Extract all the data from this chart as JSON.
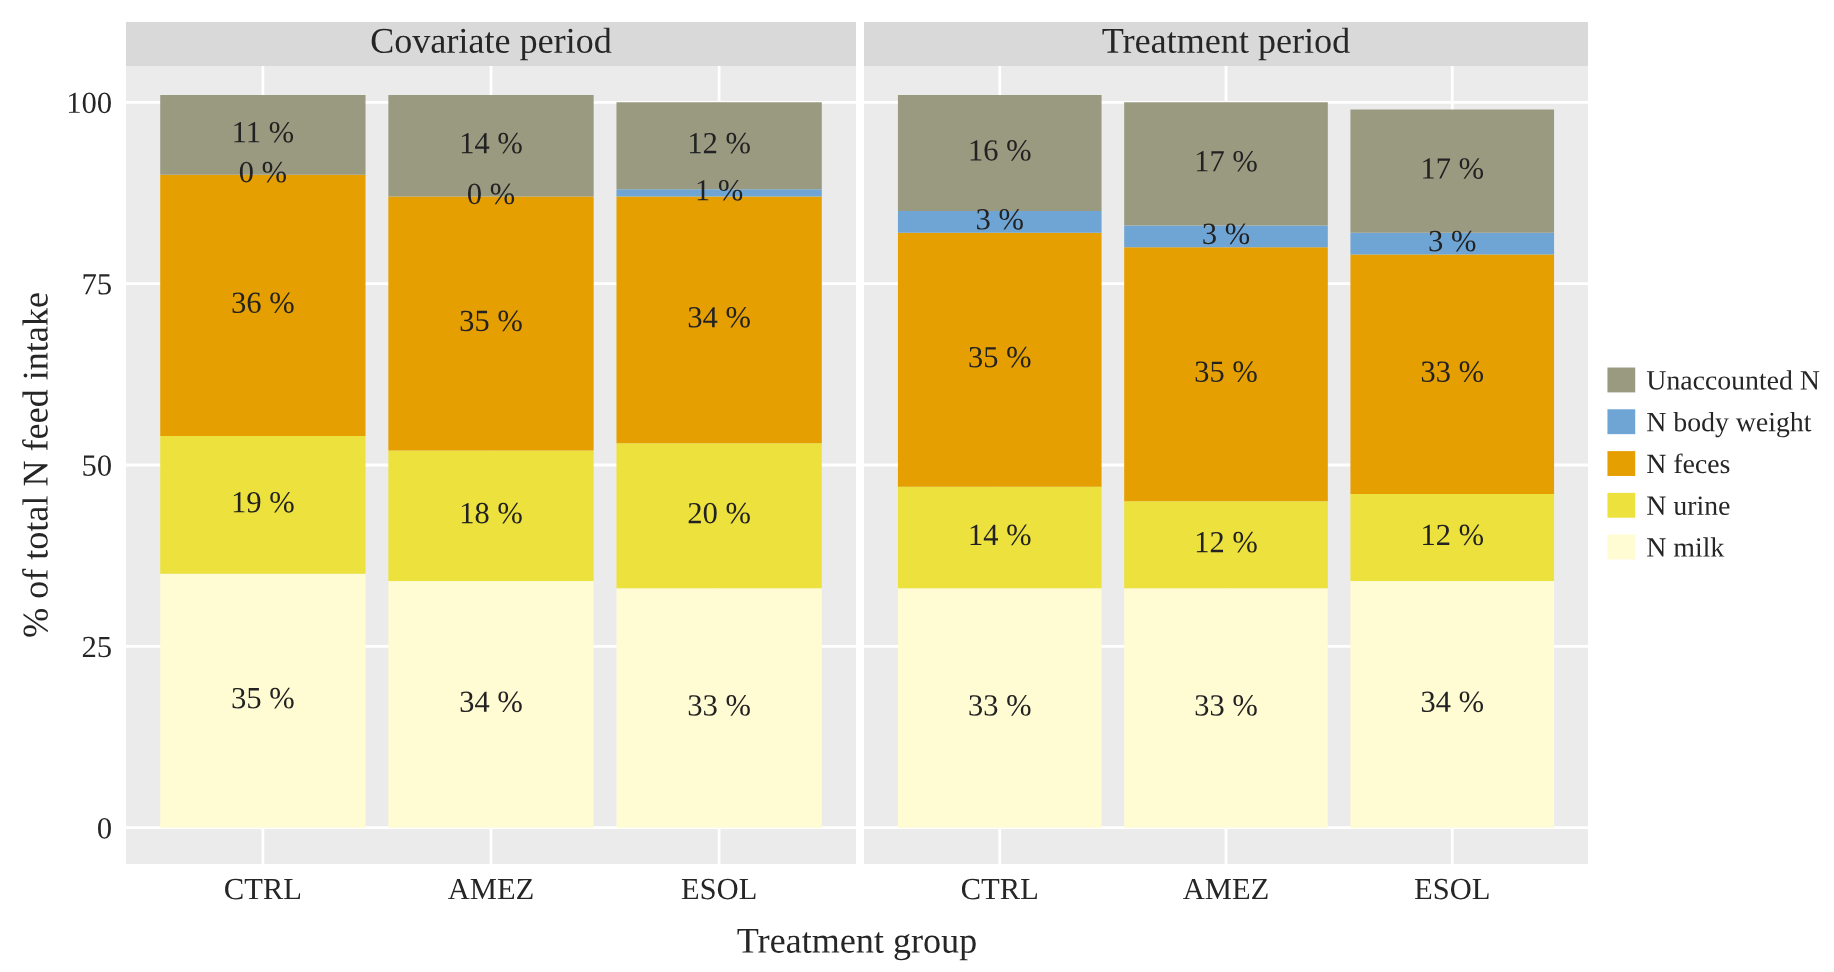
{
  "chart_data": [
    {
      "type": "bar",
      "title": "Covariate period",
      "xlabel": "Treatment group",
      "ylabel": "% of total N feed intake",
      "stacked": true,
      "grid": true,
      "categories": [
        "CTRL",
        "AMEZ",
        "ESOL"
      ],
      "ylim": [
        -5,
        105
      ],
      "yticks": [
        0,
        25,
        50,
        75,
        100
      ],
      "series": [
        {
          "color": "#fffbd2",
          "values": [
            35,
            34,
            33
          ],
          "value_labels": [
            "35 %",
            "34 %",
            "33 %"
          ]
        },
        {
          "color": "#ede23d",
          "values": [
            19,
            18,
            20
          ],
          "value_labels": [
            "19 %",
            "18 %",
            "20 %"
          ]
        },
        {
          "color": "#e69f00",
          "values": [
            36,
            35,
            34
          ],
          "value_labels": [
            "36 %",
            "35 %",
            "34 %"
          ]
        },
        {
          "color": "#6fa5d4",
          "values": [
            0,
            0,
            1
          ],
          "value_labels": [
            "0 %",
            "0 %",
            "1 %"
          ]
        },
        {
          "color": "#999a80",
          "values": [
            11,
            14,
            12
          ],
          "value_labels": [
            "11 %",
            "14 %",
            "12 %"
          ]
        }
      ]
    },
    {
      "type": "bar",
      "title": "Treatment period",
      "stacked": true,
      "grid": true,
      "legend": "right",
      "tick_labels": "x",
      "categories": [
        "CTRL",
        "AMEZ",
        "ESOL"
      ],
      "ylim": [
        -5,
        105
      ],
      "yticks": [
        0,
        25,
        50,
        75,
        100
      ],
      "series": [
        {
          "name": "N milk",
          "color": "#fffbd2",
          "values": [
            33,
            33,
            34
          ],
          "value_labels": [
            "33 %",
            "33 %",
            "34 %"
          ]
        },
        {
          "name": "N urine",
          "color": "#ede23d",
          "values": [
            14,
            12,
            12
          ],
          "value_labels": [
            "14 %",
            "12 %",
            "12 %"
          ]
        },
        {
          "name": "N feces",
          "color": "#e69f00",
          "values": [
            35,
            35,
            33
          ],
          "value_labels": [
            "35 %",
            "35 %",
            "33 %"
          ]
        },
        {
          "name": "N body weight",
          "color": "#6fa5d4",
          "values": [
            3,
            3,
            3
          ],
          "value_labels": [
            "3 %",
            "3 %",
            "3 %"
          ]
        },
        {
          "name": "Unaccounted N",
          "color": "#999a80",
          "values": [
            16,
            17,
            17
          ],
          "value_labels": [
            "16 %",
            "17 %",
            "17 %"
          ]
        }
      ]
    }
  ]
}
